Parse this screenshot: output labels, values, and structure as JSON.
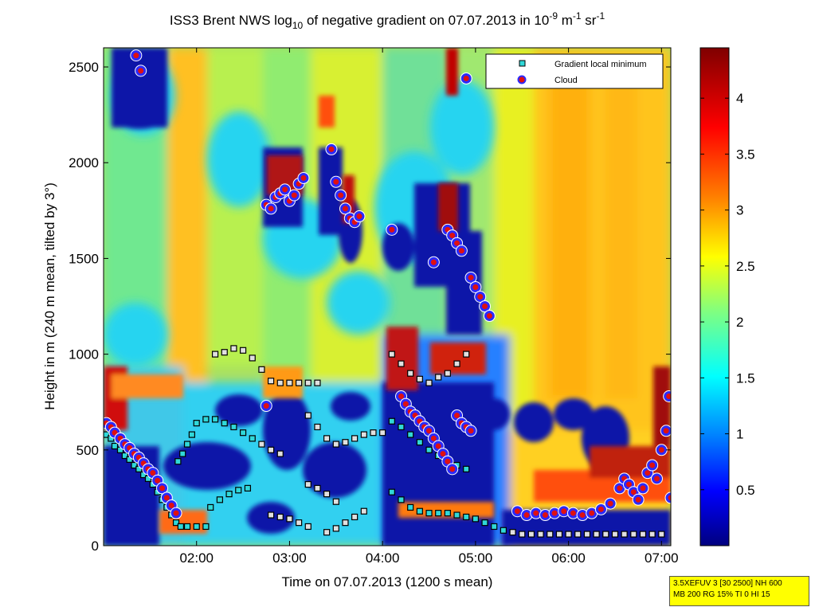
{
  "chart_data": {
    "type": "heatmap",
    "title_parts": {
      "a": "ISS3 Brent NWS log",
      "a_sub": "10",
      "b": " of negative gradient on 07.07.2013 in 10",
      "b_sup": "-9",
      "c": " m",
      "c_sup": "-1",
      "d": " sr",
      "d_sup": "-1"
    },
    "xlabel": "Time on 07.07.2013 (1200 s mean)",
    "ylabel": "Height in m (240 m mean, tilted by 3°)",
    "x_ticks": [
      "02:00",
      "03:00",
      "04:00",
      "05:00",
      "06:00",
      "07:00"
    ],
    "y_ticks": [
      "0",
      "500",
      "1000",
      "1500",
      "2000",
      "2500"
    ],
    "colorbar": {
      "ticks": [
        "0.5",
        "1",
        "1.5",
        "2",
        "2.5",
        "3",
        "3.5",
        "4"
      ],
      "range": [
        0,
        4.45
      ]
    },
    "x_range_hours": [
      1.0,
      7.1
    ],
    "y_range_m": [
      0,
      2600
    ],
    "legend": {
      "placement": "top-right",
      "entries": [
        {
          "label": "Gradient local minimum",
          "marker": "square",
          "color": "#30d8d8"
        },
        {
          "label": "Cloud",
          "marker": "circle",
          "color": "#e01010"
        }
      ]
    },
    "series": [
      {
        "name": "Gradient local minimum",
        "points": [
          [
            1.03,
            580
          ],
          [
            1.08,
            560
          ],
          [
            1.12,
            520
          ],
          [
            1.18,
            500
          ],
          [
            1.23,
            470
          ],
          [
            1.28,
            450
          ],
          [
            1.33,
            420
          ],
          [
            1.38,
            400
          ],
          [
            1.43,
            370
          ],
          [
            1.48,
            350
          ],
          [
            1.53,
            320
          ],
          [
            1.58,
            280
          ],
          [
            1.63,
            240
          ],
          [
            1.68,
            200
          ],
          [
            1.73,
            160
          ],
          [
            1.78,
            120
          ],
          [
            1.83,
            100
          ],
          [
            1.9,
            100
          ],
          [
            2.0,
            100
          ],
          [
            2.1,
            100
          ],
          [
            1.8,
            440
          ],
          [
            1.85,
            480
          ],
          [
            1.9,
            530
          ],
          [
            1.95,
            580
          ],
          [
            2.0,
            640
          ],
          [
            2.1,
            660
          ],
          [
            2.2,
            660
          ],
          [
            2.3,
            640
          ],
          [
            2.4,
            620
          ],
          [
            2.5,
            590
          ],
          [
            2.6,
            560
          ],
          [
            2.7,
            530
          ],
          [
            2.8,
            500
          ],
          [
            2.9,
            480
          ],
          [
            2.2,
            1000
          ],
          [
            2.3,
            1010
          ],
          [
            2.4,
            1030
          ],
          [
            2.5,
            1020
          ],
          [
            2.6,
            980
          ],
          [
            2.7,
            920
          ],
          [
            2.8,
            860
          ],
          [
            2.9,
            850
          ],
          [
            3.0,
            850
          ],
          [
            3.1,
            850
          ],
          [
            3.2,
            850
          ],
          [
            3.3,
            850
          ],
          [
            3.2,
            680
          ],
          [
            3.3,
            620
          ],
          [
            3.4,
            560
          ],
          [
            3.5,
            530
          ],
          [
            3.6,
            540
          ],
          [
            3.7,
            560
          ],
          [
            3.8,
            580
          ],
          [
            3.9,
            590
          ],
          [
            4.0,
            590
          ],
          [
            2.15,
            200
          ],
          [
            2.25,
            240
          ],
          [
            2.35,
            270
          ],
          [
            2.45,
            290
          ],
          [
            2.55,
            300
          ],
          [
            3.2,
            320
          ],
          [
            3.3,
            300
          ],
          [
            3.4,
            270
          ],
          [
            3.5,
            230
          ],
          [
            2.8,
            160
          ],
          [
            2.9,
            150
          ],
          [
            3.0,
            140
          ],
          [
            3.1,
            120
          ],
          [
            3.2,
            100
          ],
          [
            3.4,
            70
          ],
          [
            3.5,
            90
          ],
          [
            3.6,
            120
          ],
          [
            3.7,
            150
          ],
          [
            3.8,
            180
          ],
          [
            4.1,
            280
          ],
          [
            4.2,
            240
          ],
          [
            4.3,
            200
          ],
          [
            4.4,
            180
          ],
          [
            4.5,
            170
          ],
          [
            4.6,
            170
          ],
          [
            4.7,
            170
          ],
          [
            4.8,
            160
          ],
          [
            4.9,
            150
          ],
          [
            5.0,
            140
          ],
          [
            5.1,
            120
          ],
          [
            5.2,
            100
          ],
          [
            5.3,
            80
          ],
          [
            5.4,
            70
          ],
          [
            5.5,
            60
          ],
          [
            5.6,
            60
          ],
          [
            5.7,
            60
          ],
          [
            5.8,
            60
          ],
          [
            5.9,
            60
          ],
          [
            6.0,
            60
          ],
          [
            6.1,
            60
          ],
          [
            6.2,
            60
          ],
          [
            6.3,
            60
          ],
          [
            6.4,
            60
          ],
          [
            6.5,
            60
          ],
          [
            6.6,
            60
          ],
          [
            6.7,
            60
          ],
          [
            6.8,
            60
          ],
          [
            6.9,
            60
          ],
          [
            7.0,
            60
          ],
          [
            4.1,
            1000
          ],
          [
            4.2,
            950
          ],
          [
            4.3,
            900
          ],
          [
            4.4,
            870
          ],
          [
            4.5,
            850
          ],
          [
            4.6,
            880
          ],
          [
            4.7,
            900
          ],
          [
            4.8,
            950
          ],
          [
            4.9,
            1000
          ],
          [
            4.1,
            650
          ],
          [
            4.2,
            620
          ],
          [
            4.3,
            580
          ],
          [
            4.4,
            540
          ],
          [
            4.5,
            500
          ],
          [
            4.6,
            470
          ],
          [
            4.7,
            440
          ],
          [
            4.8,
            420
          ],
          [
            4.9,
            400
          ]
        ]
      },
      {
        "name": "Cloud",
        "points": [
          [
            1.03,
            640
          ],
          [
            1.08,
            620
          ],
          [
            1.12,
            590
          ],
          [
            1.18,
            560
          ],
          [
            1.23,
            530
          ],
          [
            1.28,
            510
          ],
          [
            1.33,
            480
          ],
          [
            1.38,
            460
          ],
          [
            1.43,
            430
          ],
          [
            1.48,
            400
          ],
          [
            1.53,
            380
          ],
          [
            1.58,
            340
          ],
          [
            1.63,
            300
          ],
          [
            1.68,
            250
          ],
          [
            1.73,
            210
          ],
          [
            1.78,
            170
          ],
          [
            1.35,
            2560
          ],
          [
            1.4,
            2480
          ],
          [
            2.75,
            1780
          ],
          [
            2.8,
            1760
          ],
          [
            2.85,
            1820
          ],
          [
            2.9,
            1840
          ],
          [
            2.95,
            1860
          ],
          [
            3.0,
            1800
          ],
          [
            3.05,
            1830
          ],
          [
            3.1,
            1890
          ],
          [
            3.15,
            1920
          ],
          [
            3.45,
            2070
          ],
          [
            3.5,
            1900
          ],
          [
            3.55,
            1830
          ],
          [
            3.6,
            1760
          ],
          [
            3.65,
            1710
          ],
          [
            3.7,
            1690
          ],
          [
            3.75,
            1720
          ],
          [
            4.1,
            1650
          ],
          [
            4.55,
            1480
          ],
          [
            4.7,
            1650
          ],
          [
            4.75,
            1620
          ],
          [
            4.8,
            1580
          ],
          [
            4.85,
            1540
          ],
          [
            4.9,
            2440
          ],
          [
            4.95,
            1400
          ],
          [
            5.0,
            1350
          ],
          [
            5.05,
            1300
          ],
          [
            5.1,
            1250
          ],
          [
            5.15,
            1200
          ],
          [
            2.75,
            730
          ],
          [
            4.2,
            780
          ],
          [
            4.25,
            740
          ],
          [
            4.3,
            700
          ],
          [
            4.35,
            680
          ],
          [
            4.4,
            650
          ],
          [
            4.45,
            620
          ],
          [
            4.5,
            600
          ],
          [
            4.55,
            560
          ],
          [
            4.6,
            520
          ],
          [
            4.65,
            480
          ],
          [
            4.7,
            440
          ],
          [
            4.75,
            400
          ],
          [
            4.8,
            680
          ],
          [
            4.85,
            640
          ],
          [
            4.9,
            620
          ],
          [
            4.95,
            600
          ],
          [
            5.45,
            180
          ],
          [
            5.55,
            160
          ],
          [
            5.65,
            170
          ],
          [
            5.75,
            160
          ],
          [
            5.85,
            170
          ],
          [
            5.95,
            180
          ],
          [
            6.05,
            170
          ],
          [
            6.15,
            160
          ],
          [
            6.25,
            170
          ],
          [
            6.35,
            190
          ],
          [
            6.45,
            220
          ],
          [
            6.55,
            300
          ],
          [
            6.6,
            350
          ],
          [
            6.65,
            320
          ],
          [
            6.7,
            280
          ],
          [
            6.75,
            240
          ],
          [
            6.8,
            300
          ],
          [
            6.85,
            380
          ],
          [
            6.9,
            420
          ],
          [
            6.95,
            350
          ],
          [
            7.0,
            500
          ],
          [
            7.05,
            600
          ],
          [
            7.08,
            780
          ],
          [
            7.1,
            250
          ]
        ]
      }
    ]
  },
  "info_box": {
    "line1": "3.5XEFUV 3 [30 2500] NH 600",
    "line2": "MB 200 RG 15% TI 0 HI 15"
  }
}
